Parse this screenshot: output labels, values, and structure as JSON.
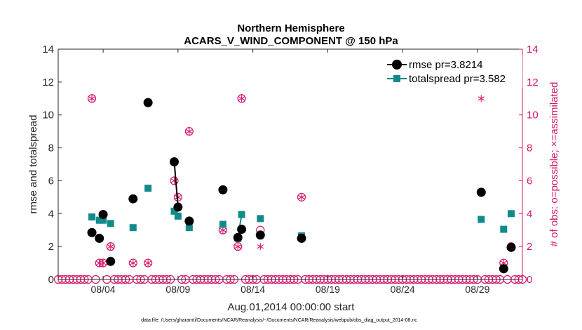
{
  "chart_data": {
    "type": "line",
    "title": "Northern Hemisphere",
    "subtitle": "ACARS_V_WIND_COMPONENT @ 150 hPa",
    "xlabel": "Aug.01,2014 00:00:00 start",
    "ylabel": "rmse and totalspread",
    "y2label": "# of obs: o=possible; ×=assimilated",
    "footnote": "data file: /Users/gharamti/Documents/NCAR/Reanalysis/~/Documents/NCAR/Reanalysis/webpub/obs_diag_output_2014-08.nc",
    "xlim": [
      0,
      31
    ],
    "ylim": [
      0,
      14
    ],
    "y2lim": [
      0,
      14
    ],
    "xticks": [
      {
        "value": 3,
        "label": "08/04"
      },
      {
        "value": 8,
        "label": "08/09"
      },
      {
        "value": 13,
        "label": "08/14"
      },
      {
        "value": 18,
        "label": "08/19"
      },
      {
        "value": 23,
        "label": "08/24"
      },
      {
        "value": 28,
        "label": "08/29"
      }
    ],
    "yticks": [
      0,
      2,
      4,
      6,
      8,
      10,
      12,
      14
    ],
    "y2ticks": [
      0,
      2,
      4,
      6,
      8,
      10,
      12,
      14
    ],
    "colors": {
      "rmse": "#000000",
      "spread": "#138a8a",
      "obs": "#d4156b",
      "axis": "#262626"
    },
    "legend": [
      {
        "label": "rmse pr=3.8214",
        "series": "rmse"
      },
      {
        "label": "totalspread pr=3.582",
        "series": "spread"
      }
    ],
    "series": [
      {
        "name": "rmse",
        "points": [
          [
            2.25,
            2.85
          ],
          [
            2.75,
            2.5
          ],
          [
            3.0,
            3.95
          ],
          [
            3.5,
            1.1
          ],
          [
            5.0,
            4.9
          ],
          [
            6.0,
            10.75
          ],
          [
            7.75,
            7.15
          ],
          [
            8.0,
            4.4
          ],
          [
            8.75,
            3.55
          ],
          [
            11.0,
            5.45
          ],
          [
            12.0,
            2.55
          ],
          [
            12.25,
            3.05
          ],
          [
            13.5,
            2.7
          ],
          [
            16.25,
            2.5
          ],
          [
            28.25,
            5.3
          ],
          [
            29.75,
            0.65
          ],
          [
            30.25,
            1.95
          ]
        ],
        "connected": [
          [
            6,
            7
          ],
          [
            10,
            11
          ]
        ]
      },
      {
        "name": "totalspread",
        "points": [
          [
            2.25,
            3.8
          ],
          [
            2.75,
            3.6
          ],
          [
            3.0,
            3.6
          ],
          [
            3.5,
            3.4
          ],
          [
            5.0,
            3.15
          ],
          [
            6.0,
            5.55
          ],
          [
            7.75,
            4.15
          ],
          [
            8.0,
            3.85
          ],
          [
            8.75,
            3.15
          ],
          [
            11.0,
            3.35
          ],
          [
            12.0,
            2.5
          ],
          [
            12.25,
            3.95
          ],
          [
            13.5,
            3.7
          ],
          [
            16.25,
            2.65
          ],
          [
            28.25,
            3.65
          ],
          [
            29.75,
            3.05
          ],
          [
            30.25,
            4.0
          ]
        ],
        "connected": [
          [
            6,
            7
          ],
          [
            10,
            11
          ]
        ]
      },
      {
        "name": "obs_possible",
        "zero_step": 0.25,
        "points": [
          [
            2.25,
            11
          ],
          [
            2.75,
            1
          ],
          [
            3.0,
            1
          ],
          [
            3.5,
            2
          ],
          [
            5.0,
            1
          ],
          [
            6.0,
            1
          ],
          [
            7.75,
            6
          ],
          [
            8.0,
            5
          ],
          [
            8.75,
            9
          ],
          [
            11.0,
            3
          ],
          [
            12.0,
            2
          ],
          [
            12.25,
            11
          ],
          [
            13.5,
            3
          ],
          [
            16.25,
            5
          ],
          [
            29.75,
            1
          ],
          [
            30.25,
            2
          ]
        ]
      },
      {
        "name": "obs_assimilated",
        "points": [
          [
            2.25,
            11
          ],
          [
            2.75,
            1
          ],
          [
            3.0,
            1
          ],
          [
            3.5,
            2
          ],
          [
            5.0,
            1
          ],
          [
            6.0,
            1
          ],
          [
            7.75,
            6
          ],
          [
            8.0,
            5
          ],
          [
            8.75,
            9
          ],
          [
            11.0,
            3
          ],
          [
            12.0,
            2
          ],
          [
            12.25,
            11
          ],
          [
            13.5,
            2
          ],
          [
            16.25,
            5
          ],
          [
            28.25,
            11
          ],
          [
            29.75,
            1
          ],
          [
            30.25,
            2
          ]
        ]
      }
    ]
  }
}
